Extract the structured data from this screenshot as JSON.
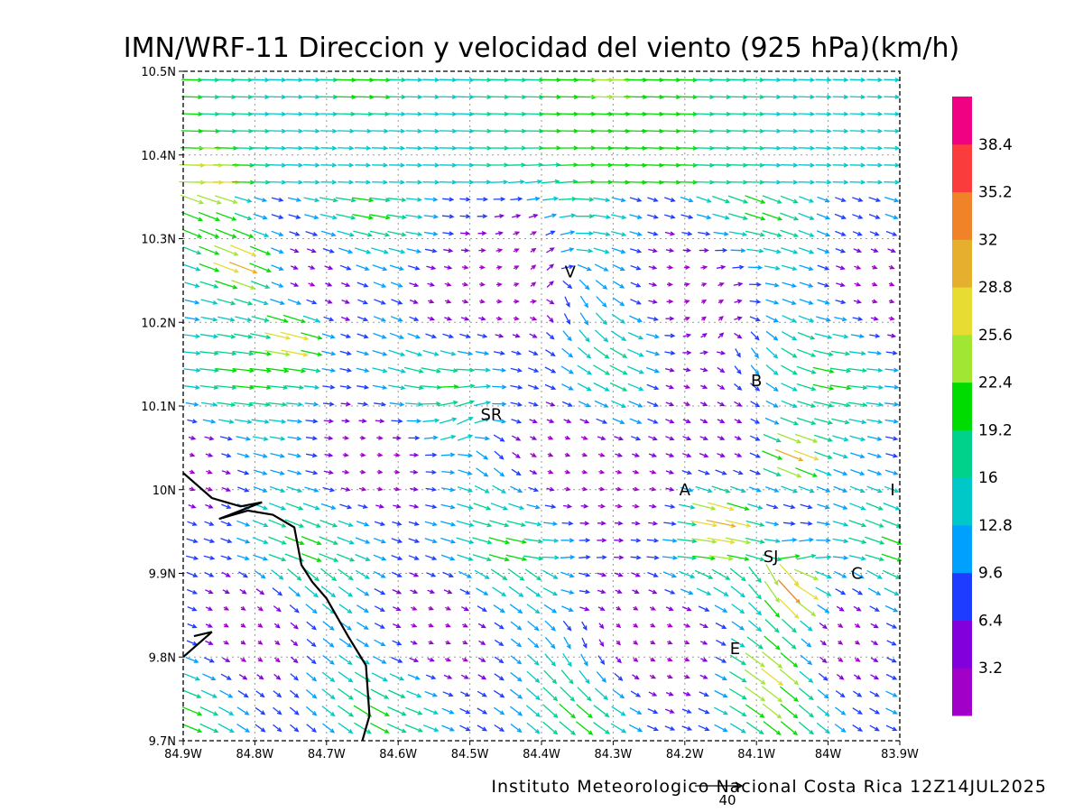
{
  "title": "IMN/WRF-11 Direccion y velocidad del viento (925 hPa)(km/h)",
  "credit": "Instituto Meteorologico Nacional Costa Rica 12Z14JUL2025",
  "reference_vector": {
    "value": "40"
  },
  "axes": {
    "lon": {
      "min": -84.9,
      "max": -83.9,
      "ticks": [
        {
          "v": -84.9,
          "label": "84.9W"
        },
        {
          "v": -84.8,
          "label": "84.8W"
        },
        {
          "v": -84.7,
          "label": "84.7W"
        },
        {
          "v": -84.6,
          "label": "84.6W"
        },
        {
          "v": -84.5,
          "label": "84.5W"
        },
        {
          "v": -84.4,
          "label": "84.4W"
        },
        {
          "v": -84.3,
          "label": "84.3W"
        },
        {
          "v": -84.2,
          "label": "84.2W"
        },
        {
          "v": -84.1,
          "label": "84.1W"
        },
        {
          "v": -84.0,
          "label": "84W"
        },
        {
          "v": -83.9,
          "label": "83.9W"
        }
      ]
    },
    "lat": {
      "min": 9.7,
      "max": 10.5,
      "ticks": [
        {
          "v": 9.7,
          "label": "9.7N"
        },
        {
          "v": 9.8,
          "label": "9.8N"
        },
        {
          "v": 9.9,
          "label": "9.9N"
        },
        {
          "v": 10.0,
          "label": "10N"
        },
        {
          "v": 10.1,
          "label": "10.1N"
        },
        {
          "v": 10.2,
          "label": "10.2N"
        },
        {
          "v": 10.3,
          "label": "10.3N"
        },
        {
          "v": 10.4,
          "label": "10.4N"
        },
        {
          "v": 10.5,
          "label": "10.5N"
        }
      ]
    },
    "grid": true
  },
  "colorbar": {
    "labels": [
      "3.2",
      "6.4",
      "9.6",
      "12.8",
      "16",
      "19.2",
      "22.4",
      "25.6",
      "28.8",
      "32",
      "35.2",
      "38.4"
    ],
    "colors": [
      "#a000c8",
      "#8200dc",
      "#1e3cff",
      "#00a0ff",
      "#00c8c8",
      "#00d28c",
      "#00dc00",
      "#a0e632",
      "#e6dc32",
      "#e6af2d",
      "#f08228",
      "#fa3c3c",
      "#f00082"
    ]
  },
  "places": [
    {
      "label": "V",
      "lon": -84.36,
      "lat": 10.26
    },
    {
      "label": "SR",
      "lon": -84.47,
      "lat": 10.09
    },
    {
      "label": "B",
      "lon": -84.1,
      "lat": 10.13
    },
    {
      "label": "A",
      "lon": -84.2,
      "lat": 10.0
    },
    {
      "label": "I",
      "lon": -83.91,
      "lat": 10.0
    },
    {
      "label": "SJ",
      "lon": -84.08,
      "lat": 9.92
    },
    {
      "label": "C",
      "lon": -83.96,
      "lat": 9.9
    },
    {
      "label": "E",
      "lon": -84.13,
      "lat": 9.81
    }
  ],
  "coastline": [
    [
      -84.9,
      10.02
    ],
    [
      -84.86,
      9.99
    ],
    [
      -84.82,
      9.98
    ],
    [
      -84.79,
      9.985
    ],
    [
      -84.85,
      9.965
    ],
    [
      -84.81,
      9.975
    ],
    [
      -84.775,
      9.97
    ],
    [
      -84.745,
      9.955
    ],
    [
      -84.735,
      9.91
    ],
    [
      -84.72,
      9.89
    ],
    [
      -84.7,
      9.87
    ],
    [
      -84.67,
      9.825
    ],
    [
      -84.645,
      9.79
    ],
    [
      -84.64,
      9.73
    ],
    [
      -84.65,
      9.7
    ]
  ],
  "coastline2": [
    [
      -84.9,
      9.8
    ],
    [
      -84.86,
      9.83
    ],
    [
      -84.885,
      9.825
    ]
  ],
  "wind_field": {
    "source": "approximate reproduction of the plotted vector field",
    "centers": [
      {
        "lon": -84.36,
        "lat": 10.26,
        "k": 1.0,
        "r": 0.09
      },
      {
        "lon": -84.47,
        "lat": 10.07,
        "k": 0.6,
        "r": 0.08
      },
      {
        "lon": -84.12,
        "lat": 10.2,
        "k": 1.0,
        "r": 0.08
      },
      {
        "lon": -84.05,
        "lat": 9.9,
        "k": -0.4,
        "r": 0.06
      },
      {
        "lon": -84.33,
        "lat": 9.85,
        "k": 0.6,
        "r": 0.07
      }
    ],
    "calm_zones": [
      {
        "lon": -84.42,
        "lat": 10.3,
        "r": 0.06
      },
      {
        "lon": -84.25,
        "lat": 10.0,
        "r": 0.08
      },
      {
        "lon": -84.55,
        "lat": 10.22,
        "r": 0.05
      },
      {
        "lon": -84.2,
        "lat": 10.12,
        "r": 0.06
      },
      {
        "lon": -84.2,
        "lat": 9.8,
        "r": 0.06
      }
    ],
    "fast_zones": [
      {
        "lon": -84.65,
        "lat": 10.48,
        "speed": 22
      },
      {
        "lon": -84.3,
        "lat": 10.48,
        "speed": 23
      },
      {
        "lon": -84.86,
        "lat": 10.37,
        "speed": 28
      },
      {
        "lon": -84.82,
        "lat": 10.27,
        "speed": 30
      },
      {
        "lon": -84.75,
        "lat": 10.18,
        "speed": 29
      },
      {
        "lon": -84.05,
        "lat": 10.04,
        "speed": 30
      },
      {
        "lon": -84.15,
        "lat": 9.96,
        "speed": 30
      },
      {
        "lon": -84.05,
        "lat": 9.88,
        "speed": 33
      },
      {
        "lon": -84.08,
        "lat": 9.78,
        "speed": 27
      }
    ]
  }
}
